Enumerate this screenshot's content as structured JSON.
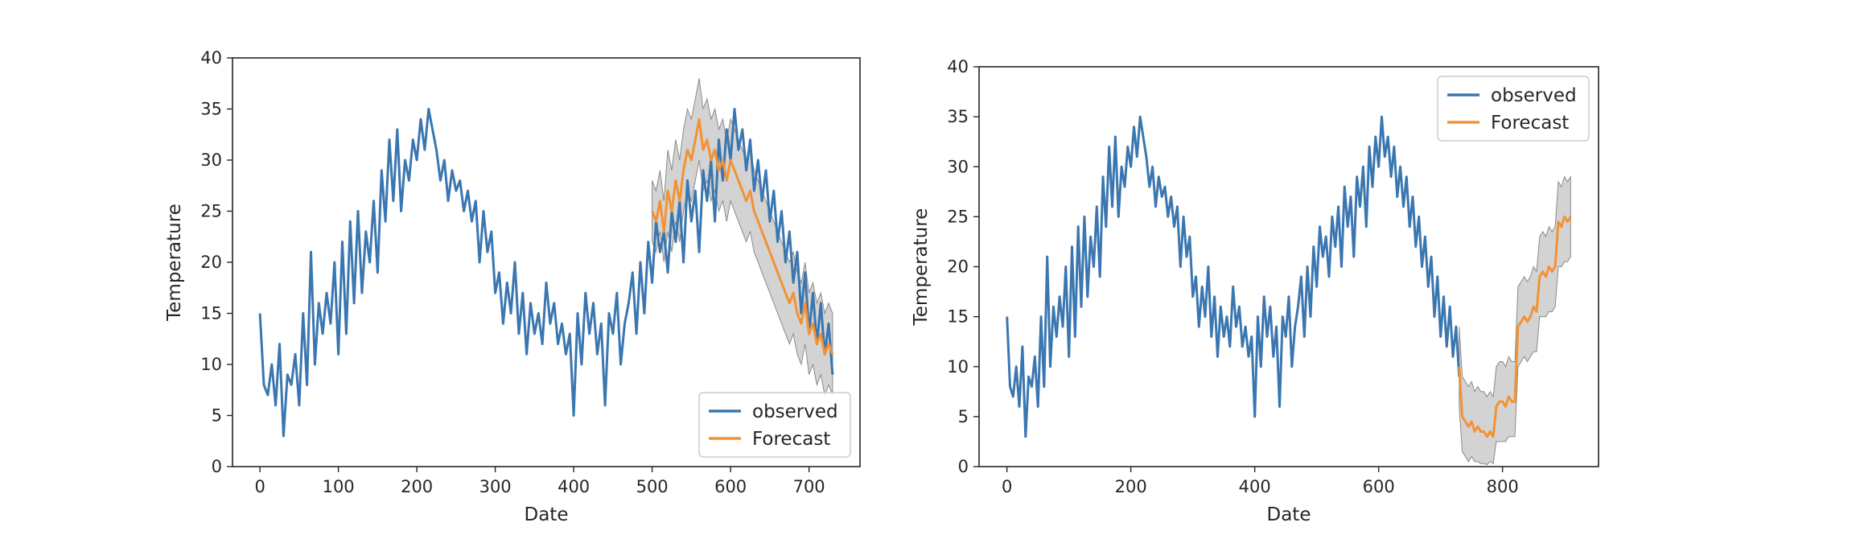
{
  "chart_data": [
    {
      "type": "line",
      "xlabel": "Date",
      "ylabel": "Temperature",
      "xlim": [
        -35,
        765
      ],
      "ylim": [
        0,
        40
      ],
      "xticks": [
        0,
        100,
        200,
        300,
        400,
        500,
        600,
        700
      ],
      "yticks": [
        0,
        5,
        10,
        15,
        20,
        25,
        30,
        35,
        40
      ],
      "grid": false,
      "legend_position": "lower-right",
      "series": [
        {
          "name": "observed",
          "color": "#3a76b0",
          "x": [
            0,
            5,
            10,
            15,
            20,
            25,
            30,
            35,
            40,
            45,
            50,
            55,
            60,
            65,
            70,
            75,
            80,
            85,
            90,
            95,
            100,
            105,
            110,
            115,
            120,
            125,
            130,
            135,
            140,
            145,
            150,
            155,
            160,
            165,
            170,
            175,
            180,
            185,
            190,
            195,
            200,
            205,
            210,
            215,
            220,
            225,
            230,
            235,
            240,
            245,
            250,
            255,
            260,
            265,
            270,
            275,
            280,
            285,
            290,
            295,
            300,
            305,
            310,
            315,
            320,
            325,
            330,
            335,
            340,
            345,
            350,
            355,
            360,
            365,
            370,
            375,
            380,
            385,
            390,
            395,
            400,
            405,
            410,
            415,
            420,
            425,
            430,
            435,
            440,
            445,
            450,
            455,
            460,
            465,
            470,
            475,
            480,
            485,
            490,
            495,
            500,
            505,
            510,
            515,
            520,
            525,
            530,
            535,
            540,
            545,
            550,
            555,
            560,
            565,
            570,
            575,
            580,
            585,
            590,
            595,
            600,
            605,
            610,
            615,
            620,
            625,
            630,
            635,
            640,
            645,
            650,
            655,
            660,
            665,
            670,
            675,
            680,
            685,
            690,
            695,
            700,
            705,
            710,
            715,
            720,
            725,
            730
          ],
          "y": [
            15,
            8,
            7,
            10,
            6,
            12,
            3,
            9,
            8,
            11,
            6,
            15,
            8,
            21,
            10,
            16,
            13,
            17,
            14,
            20,
            11,
            22,
            13,
            24,
            16,
            25,
            17,
            23,
            20,
            26,
            19,
            29,
            24,
            32,
            26,
            33,
            25,
            30,
            28,
            32,
            30,
            34,
            31,
            35,
            33,
            31,
            28,
            30,
            26,
            29,
            27,
            28,
            25,
            27,
            24,
            26,
            20,
            25,
            21,
            23,
            17,
            19,
            14,
            18,
            15,
            20,
            13,
            17,
            11,
            16,
            13,
            15,
            12,
            18,
            14,
            16,
            12,
            14,
            11,
            13,
            5,
            15,
            10,
            17,
            13,
            16,
            11,
            14,
            6,
            15,
            13,
            17,
            10,
            14,
            16,
            19,
            13,
            20,
            15,
            22,
            18,
            24,
            21,
            23,
            19,
            25,
            22,
            26,
            20,
            28,
            24,
            27,
            21,
            29,
            26,
            30,
            24,
            32,
            28,
            33,
            30,
            35,
            31,
            33,
            29,
            32,
            27,
            30,
            26,
            29,
            24,
            27,
            22,
            25,
            20,
            23,
            18,
            21,
            15,
            19,
            13,
            17,
            12,
            16,
            11,
            14,
            9
          ]
        },
        {
          "name": "Forecast",
          "color": "#f39234",
          "x": [
            500,
            505,
            510,
            515,
            520,
            525,
            530,
            535,
            540,
            545,
            550,
            555,
            560,
            565,
            570,
            575,
            580,
            585,
            590,
            595,
            600,
            605,
            610,
            615,
            620,
            625,
            630,
            635,
            640,
            645,
            650,
            655,
            660,
            665,
            670,
            675,
            680,
            685,
            690,
            695,
            700,
            705,
            710,
            715,
            720,
            725,
            730
          ],
          "y": [
            25,
            24,
            26,
            23,
            27,
            25,
            28,
            26,
            29,
            31,
            30,
            32,
            34,
            31,
            32,
            30,
            31,
            29,
            30,
            28,
            30,
            29,
            28,
            27,
            26,
            27,
            25,
            24,
            23,
            22,
            21,
            20,
            19,
            18,
            17,
            16,
            17,
            15,
            14,
            16,
            13,
            14,
            12,
            13,
            11,
            12,
            11
          ],
          "lower": [
            22,
            21,
            23,
            20,
            23,
            21,
            24,
            22,
            25,
            27,
            26,
            28,
            30,
            27,
            28,
            26,
            27,
            25,
            26,
            24,
            26,
            25,
            24,
            23,
            22,
            23,
            21,
            20,
            19,
            18,
            17,
            16,
            15,
            14,
            13,
            12,
            13,
            11,
            10,
            12,
            9,
            10,
            8,
            9,
            7,
            8,
            7
          ],
          "upper": [
            28,
            27,
            29,
            26,
            31,
            29,
            32,
            30,
            33,
            35,
            34,
            36,
            38,
            35,
            36,
            34,
            35,
            33,
            34,
            32,
            34,
            33,
            32,
            31,
            30,
            31,
            29,
            28,
            27,
            26,
            25,
            24,
            23,
            22,
            21,
            20,
            21,
            19,
            18,
            20,
            17,
            18,
            16,
            17,
            15,
            16,
            15
          ]
        }
      ]
    },
    {
      "type": "line",
      "xlabel": "Date",
      "ylabel": "Temperature",
      "xlim": [
        -45,
        955
      ],
      "ylim": [
        0,
        40
      ],
      "xticks": [
        0,
        200,
        400,
        600,
        800
      ],
      "yticks": [
        0,
        5,
        10,
        15,
        20,
        25,
        30,
        35,
        40
      ],
      "grid": false,
      "legend_position": "upper-right",
      "series": [
        {
          "name": "observed",
          "color": "#3a76b0",
          "x": [
            0,
            5,
            10,
            15,
            20,
            25,
            30,
            35,
            40,
            45,
            50,
            55,
            60,
            65,
            70,
            75,
            80,
            85,
            90,
            95,
            100,
            105,
            110,
            115,
            120,
            125,
            130,
            135,
            140,
            145,
            150,
            155,
            160,
            165,
            170,
            175,
            180,
            185,
            190,
            195,
            200,
            205,
            210,
            215,
            220,
            225,
            230,
            235,
            240,
            245,
            250,
            255,
            260,
            265,
            270,
            275,
            280,
            285,
            290,
            295,
            300,
            305,
            310,
            315,
            320,
            325,
            330,
            335,
            340,
            345,
            350,
            355,
            360,
            365,
            370,
            375,
            380,
            385,
            390,
            395,
            400,
            405,
            410,
            415,
            420,
            425,
            430,
            435,
            440,
            445,
            450,
            455,
            460,
            465,
            470,
            475,
            480,
            485,
            490,
            495,
            500,
            505,
            510,
            515,
            520,
            525,
            530,
            535,
            540,
            545,
            550,
            555,
            560,
            565,
            570,
            575,
            580,
            585,
            590,
            595,
            600,
            605,
            610,
            615,
            620,
            625,
            630,
            635,
            640,
            645,
            650,
            655,
            660,
            665,
            670,
            675,
            680,
            685,
            690,
            695,
            700,
            705,
            710,
            715,
            720,
            725,
            730
          ],
          "y": [
            15,
            8,
            7,
            10,
            6,
            12,
            3,
            9,
            8,
            11,
            6,
            15,
            8,
            21,
            10,
            16,
            13,
            17,
            14,
            20,
            11,
            22,
            13,
            24,
            16,
            25,
            17,
            23,
            20,
            26,
            19,
            29,
            24,
            32,
            26,
            33,
            25,
            30,
            28,
            32,
            30,
            34,
            31,
            35,
            33,
            31,
            28,
            30,
            26,
            29,
            27,
            28,
            25,
            27,
            24,
            26,
            20,
            25,
            21,
            23,
            17,
            19,
            14,
            18,
            15,
            20,
            13,
            17,
            11,
            16,
            13,
            15,
            12,
            18,
            14,
            16,
            12,
            14,
            11,
            13,
            5,
            15,
            10,
            17,
            13,
            16,
            11,
            14,
            6,
            15,
            13,
            17,
            10,
            14,
            16,
            19,
            13,
            20,
            15,
            22,
            18,
            24,
            21,
            23,
            19,
            25,
            22,
            26,
            20,
            28,
            24,
            27,
            21,
            29,
            26,
            30,
            24,
            32,
            28,
            33,
            30,
            35,
            31,
            33,
            29,
            32,
            27,
            30,
            26,
            29,
            24,
            27,
            22,
            25,
            20,
            23,
            18,
            21,
            15,
            19,
            13,
            17,
            12,
            16,
            11,
            14,
            9
          ]
        },
        {
          "name": "Forecast",
          "color": "#f39234",
          "x": [
            730,
            735,
            740,
            745,
            750,
            755,
            760,
            765,
            770,
            775,
            780,
            785,
            790,
            795,
            800,
            805,
            810,
            815,
            820,
            825,
            830,
            835,
            840,
            845,
            850,
            855,
            860,
            865,
            870,
            875,
            880,
            885,
            890,
            895,
            900,
            905,
            910
          ],
          "y": [
            10,
            5,
            4.5,
            4,
            4.5,
            3.5,
            4,
            3.5,
            3.5,
            3,
            3.5,
            3,
            6,
            6.5,
            6.5,
            6,
            7,
            6.5,
            6.5,
            14,
            14.5,
            15,
            14.5,
            15,
            16,
            15.5,
            19,
            19.5,
            19,
            20,
            19.5,
            20,
            24.5,
            24,
            25,
            24.5,
            25
          ],
          "lower": [
            6,
            1.5,
            1,
            0.5,
            1,
            0.5,
            0.5,
            0.3,
            0.3,
            0.2,
            0.5,
            0.3,
            2.5,
            2.5,
            2.5,
            2.5,
            3,
            3,
            3,
            10,
            10.5,
            11,
            10.5,
            11,
            11.5,
            11.5,
            15,
            15,
            15,
            15.5,
            15.5,
            16,
            20,
            20,
            20.5,
            20.5,
            21
          ],
          "upper": [
            14,
            9,
            8.5,
            8,
            8.5,
            7.5,
            8,
            7.5,
            7.5,
            7,
            7.5,
            7,
            10,
            10.5,
            10.5,
            10,
            11,
            10.5,
            10.5,
            18,
            18.5,
            19,
            18.5,
            19,
            20,
            19.5,
            23,
            23.5,
            23,
            24,
            23.5,
            24,
            28.5,
            28,
            29,
            28.5,
            29
          ]
        }
      ]
    }
  ]
}
